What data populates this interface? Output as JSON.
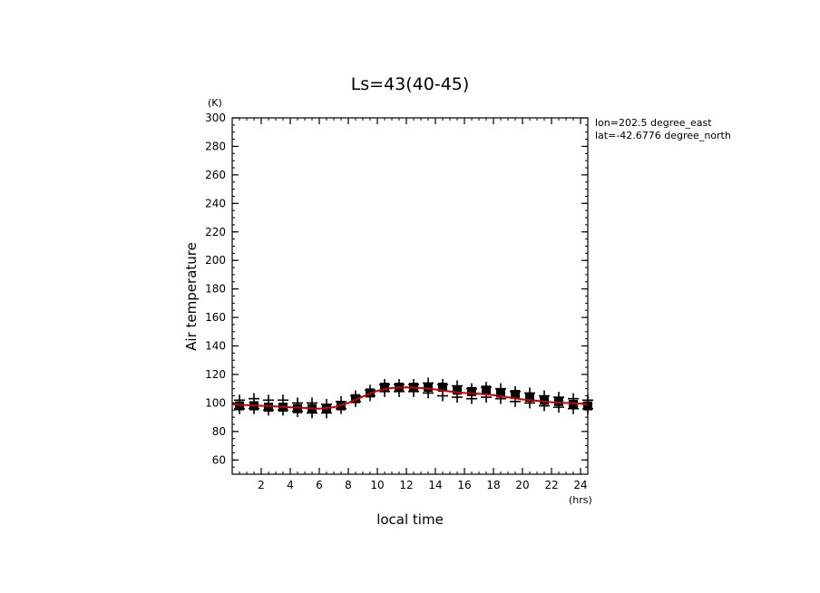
{
  "chart_data": {
    "type": "scatter",
    "title": "Ls=43(40-45)",
    "xlabel": "local time",
    "ylabel": "Air temperature",
    "x_unit": "(hrs)",
    "y_unit": "(K)",
    "xlim": [
      0,
      24.5
    ],
    "ylim": [
      50,
      300
    ],
    "xticks": [
      2,
      4,
      6,
      8,
      10,
      12,
      14,
      16,
      18,
      20,
      22,
      24
    ],
    "yticks": [
      60,
      80,
      100,
      120,
      140,
      160,
      180,
      200,
      220,
      240,
      260,
      280,
      300
    ],
    "annotations": [
      "lon=202.5 degree_east",
      "lat=-42.6776 degree_north"
    ],
    "series": [
      {
        "marker": "cross",
        "color": "#000000",
        "x": [
          0.5,
          1.5,
          2.5,
          3.5,
          4.5,
          5.5,
          6.5,
          7.5,
          8.5,
          9.5,
          10.5,
          11.5,
          12.5,
          13.5,
          14.5,
          15.5,
          16.5,
          17.5,
          18.5,
          19.5,
          20.5,
          21.5,
          22.5,
          23.5,
          24.5,
          0.5,
          1.5,
          2.5,
          3.5,
          4.5,
          5.5,
          6.5,
          7.5,
          8.5,
          9.5,
          10.5,
          11.5,
          12.5,
          13.5,
          14.5,
          15.5,
          16.5,
          17.5,
          18.5,
          19.5,
          20.5,
          21.5,
          22.5,
          23.5,
          24.5
        ],
        "y": [
          102,
          103,
          102,
          102,
          100,
          100,
          99,
          101,
          105,
          109,
          113,
          113,
          113,
          114,
          113,
          112,
          110,
          111,
          110,
          108,
          107,
          105,
          104,
          103,
          102,
          96,
          96,
          95,
          95,
          94,
          93,
          93,
          96,
          101,
          105,
          108,
          108,
          108,
          107,
          105,
          104,
          103,
          104,
          103,
          101,
          100,
          98,
          97,
          96,
          96
        ]
      },
      {
        "marker": "square",
        "color": "#000000",
        "x": [
          0.5,
          1.5,
          2.5,
          3.5,
          4.5,
          5.5,
          6.5,
          7.5,
          8.5,
          9.5,
          10.5,
          11.5,
          12.5,
          13.5,
          14.5,
          15.5,
          16.5,
          17.5,
          18.5,
          19.5,
          20.5,
          21.5,
          22.5,
          23.5,
          24.5
        ],
        "y": [
          98,
          98,
          97,
          97,
          96,
          96,
          96,
          98,
          103,
          107,
          111,
          111,
          111,
          111,
          111,
          109,
          108,
          109,
          107,
          106,
          104,
          102,
          101,
          99,
          98
        ]
      },
      {
        "marker": "line",
        "color": "#cc0000",
        "x": [
          0,
          1,
          2,
          3,
          4,
          5,
          6,
          7,
          8,
          9,
          10,
          11,
          12,
          13,
          14,
          15,
          16,
          17,
          18,
          19,
          20,
          21,
          22,
          23,
          24,
          24.5
        ],
        "y": [
          99,
          98.5,
          98,
          97.5,
          97,
          96.5,
          96,
          97,
          100,
          104.5,
          108.5,
          110.5,
          111,
          110.5,
          109.5,
          108,
          107,
          106.5,
          105.5,
          104,
          102.5,
          101.5,
          100.5,
          100,
          99.5,
          99
        ]
      }
    ]
  }
}
